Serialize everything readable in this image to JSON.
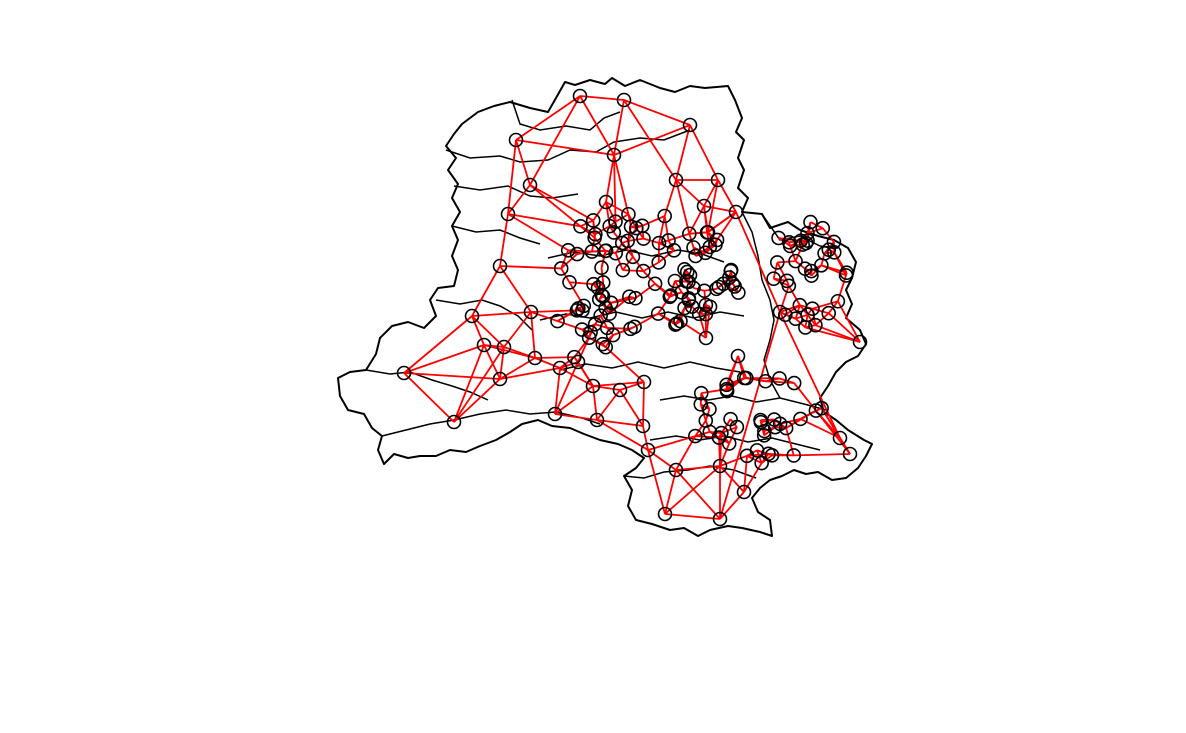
{
  "map": {
    "type": "neighbour-graph",
    "colors": {
      "boundary": "#000000",
      "edges": "#ff0000",
      "nodes": "#000000",
      "background": "#ffffff"
    },
    "node_marker": "open-circle",
    "edge_style": "straight-line"
  }
}
